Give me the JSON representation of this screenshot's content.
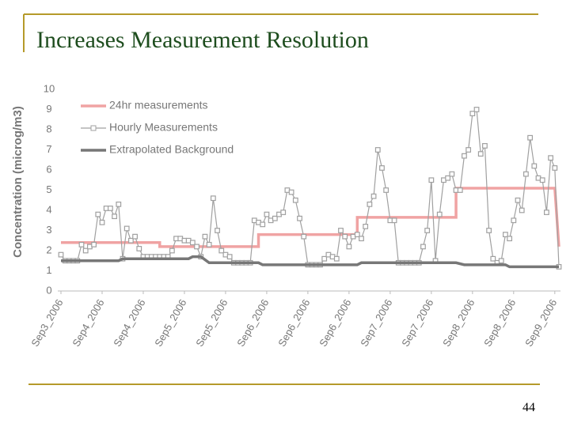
{
  "page_number": "44",
  "chart_data": {
    "type": "line",
    "title": "Increases Measurement Resolution",
    "y_label": "Concentration (microg/m3)",
    "xlim": [
      0,
      121
    ],
    "xticks": [
      {
        "value": 0,
        "label": "Sep3_2006"
      },
      {
        "value": 10,
        "label": "Sep4_2006"
      },
      {
        "value": 20,
        "label": "Sep4_2006"
      },
      {
        "value": 30,
        "label": "Sep5_2006"
      },
      {
        "value": 40,
        "label": "Sep5_2006"
      },
      {
        "value": 50,
        "label": "Sep6_2006"
      },
      {
        "value": 60,
        "label": "Sep6_2006"
      },
      {
        "value": 70,
        "label": "Sep6_2006"
      },
      {
        "value": 80,
        "label": "Sep7_2006"
      },
      {
        "value": 90,
        "label": "Sep7_2006"
      },
      {
        "value": 100,
        "label": "Sep8_2006"
      },
      {
        "value": 110,
        "label": "Sep8_2006"
      },
      {
        "value": 120,
        "label": "Sep9_2006"
      }
    ],
    "ylim": [
      0,
      10
    ],
    "yticks": [
      0,
      1,
      2,
      3,
      4,
      5,
      6,
      7,
      8,
      9,
      10
    ],
    "grid": false,
    "legend": "top-left",
    "series": [
      {
        "name": "24hr measurements",
        "color": "#f0a3a3",
        "x": [
          0,
          24,
          24,
          48,
          48,
          72,
          72,
          96,
          96,
          120,
          121
        ],
        "values": [
          2.4,
          2.4,
          2.2,
          2.2,
          2.8,
          2.8,
          3.65,
          3.65,
          5.1,
          5.1,
          2.2
        ]
      },
      {
        "name": "Hourly Measurements",
        "color": "#a0a0a0",
        "markers": true,
        "values": [
          1.8,
          1.5,
          1.5,
          1.5,
          1.5,
          2.3,
          2.0,
          2.2,
          2.3,
          3.8,
          3.4,
          4.1,
          4.1,
          3.7,
          4.3,
          1.6,
          3.1,
          2.5,
          2.7,
          2.1,
          1.7,
          1.7,
          1.7,
          1.7,
          1.7,
          1.7,
          1.7,
          2.0,
          2.6,
          2.6,
          2.5,
          2.5,
          2.4,
          2.2,
          1.7,
          2.7,
          2.3,
          4.6,
          3.0,
          2.0,
          1.8,
          1.7,
          1.4,
          1.4,
          1.4,
          1.4,
          1.4,
          3.5,
          3.4,
          3.3,
          3.8,
          3.5,
          3.6,
          3.8,
          3.9,
          5.0,
          4.9,
          4.5,
          3.6,
          2.7,
          1.3,
          1.3,
          1.3,
          1.3,
          1.6,
          1.8,
          1.7,
          1.6,
          3.0,
          2.7,
          2.2,
          2.7,
          2.8,
          2.6,
          3.2,
          4.3,
          4.7,
          7.0,
          6.1,
          5.0,
          3.5,
          3.5,
          1.4,
          1.4,
          1.4,
          1.4,
          1.4,
          1.4,
          2.2,
          3.0,
          5.5,
          1.5,
          3.8,
          5.5,
          5.6,
          5.8,
          5.0,
          5.0,
          6.7,
          7.0,
          8.8,
          9.0,
          6.8,
          7.2,
          3.0,
          1.6,
          1.4,
          1.5,
          2.8,
          2.6,
          3.5,
          4.5,
          4.0,
          5.8,
          7.6,
          6.2,
          5.6,
          5.5,
          3.9,
          6.6,
          6.1,
          1.2
        ]
      },
      {
        "name": "Extrapolated Background",
        "color": "#777777",
        "x": [
          0,
          14,
          15,
          31,
          32,
          34,
          36,
          48,
          49,
          72,
          73,
          96,
          98,
          108,
          109,
          121
        ],
        "values": [
          1.5,
          1.5,
          1.6,
          1.6,
          1.7,
          1.7,
          1.4,
          1.4,
          1.3,
          1.3,
          1.4,
          1.4,
          1.3,
          1.3,
          1.2,
          1.2
        ]
      }
    ]
  }
}
